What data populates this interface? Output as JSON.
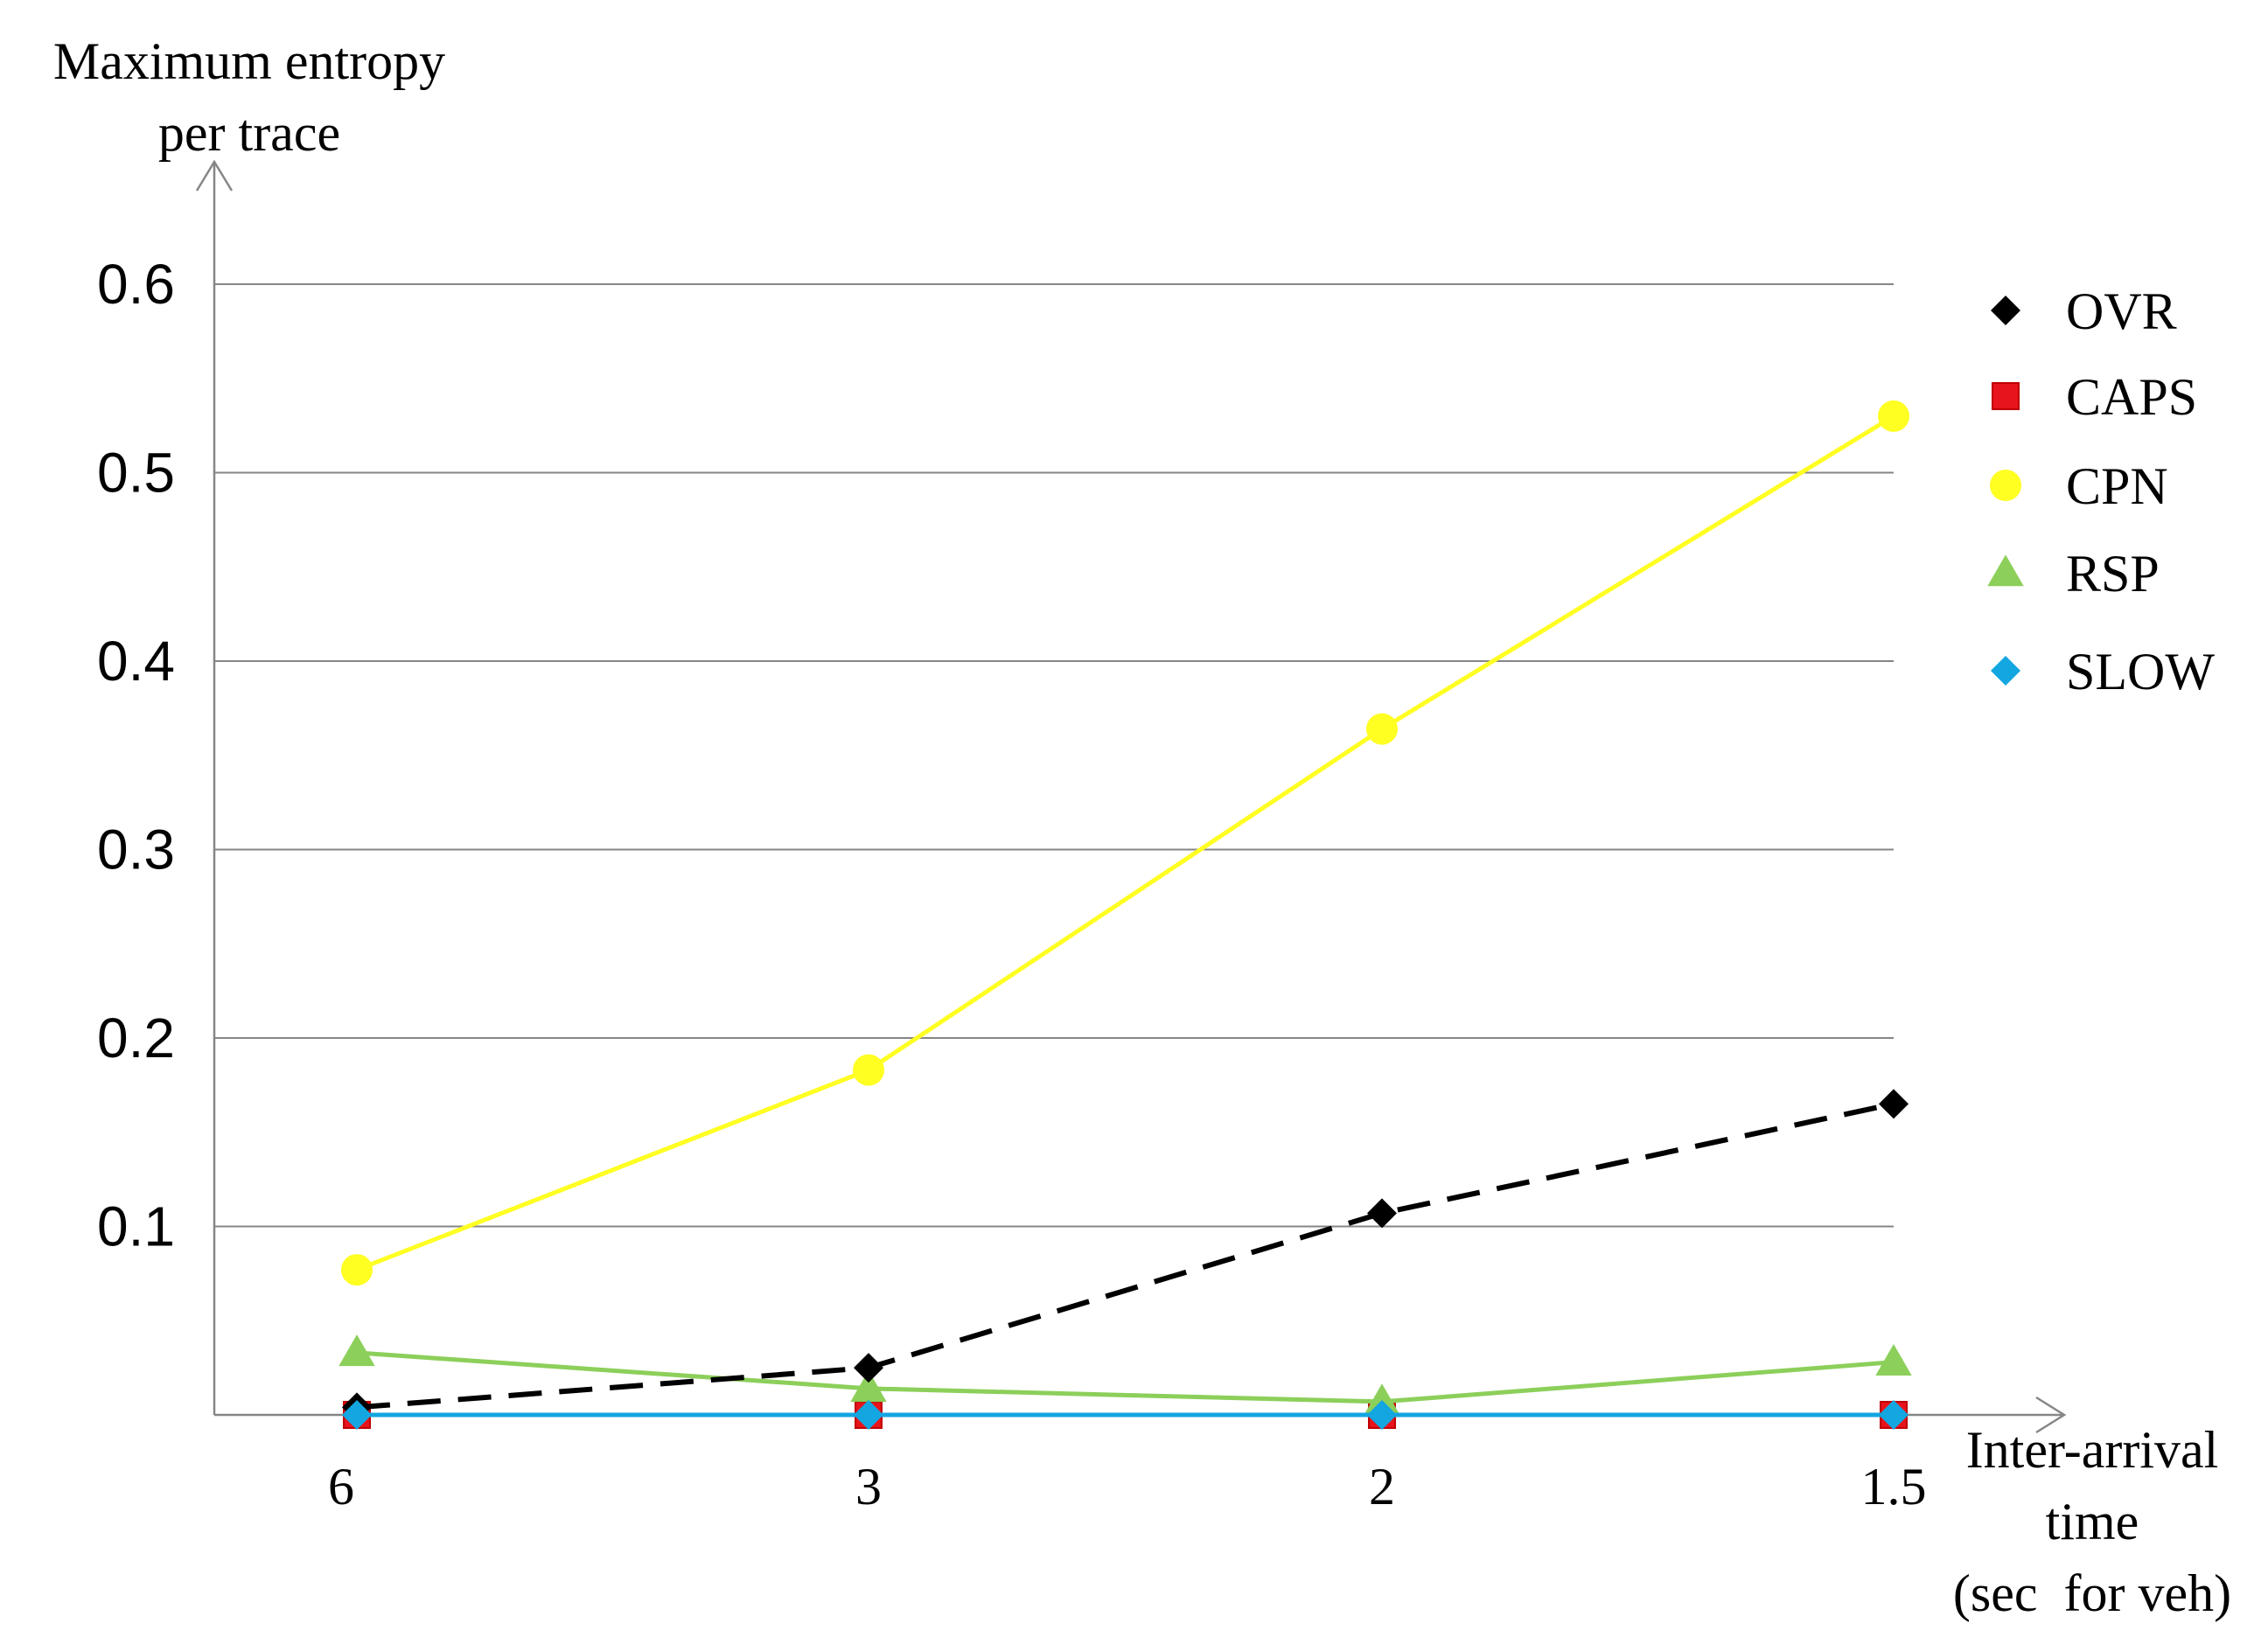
{
  "chart_data": {
    "type": "line",
    "ylabel_lines": [
      "Maximum entropy",
      "per trace"
    ],
    "xlabel_lines": [
      "Inter-arrival",
      "time",
      "(sec  for veh)"
    ],
    "categories": [
      "6",
      "3",
      "2",
      "1.5"
    ],
    "ylim": [
      0,
      0.6
    ],
    "yticks": [
      0.1,
      0.2,
      0.3,
      0.4,
      0.5,
      0.6
    ],
    "ytick_labels": [
      "0.1",
      "0.2",
      "0.3",
      "0.4",
      "0.5",
      "0.6"
    ],
    "grid": true,
    "legend_position": "right",
    "series": [
      {
        "name": "OVR",
        "values": [
          0.004,
          0.025,
          0.107,
          0.165
        ],
        "color": "#000000",
        "marker": "diamond",
        "dashed": true
      },
      {
        "name": "CAPS",
        "values": [
          0.0,
          0.0,
          0.0,
          0.0
        ],
        "color": "#e8141b",
        "marker": "square",
        "dashed": false
      },
      {
        "name": "CPN",
        "values": [
          0.077,
          0.183,
          0.364,
          0.53
        ],
        "color": "#ffff22",
        "marker": "circle",
        "dashed": false
      },
      {
        "name": "RSP",
        "values": [
          0.033,
          0.014,
          0.007,
          0.028
        ],
        "color": "#8ccf5a",
        "marker": "triangle",
        "dashed": false
      },
      {
        "name": "SLOW",
        "values": [
          0.0,
          0.0,
          0.0,
          0.0
        ],
        "color": "#13a6e0",
        "marker": "diamond",
        "dashed": false
      }
    ]
  }
}
